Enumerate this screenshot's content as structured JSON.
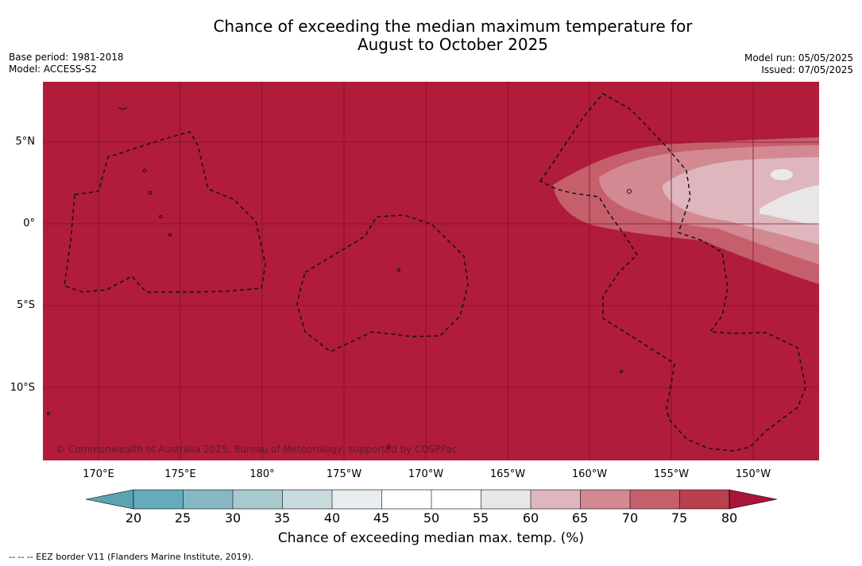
{
  "title": {
    "line1": "Chance of exceeding the median maximum temperature for",
    "line2": "August to October 2025"
  },
  "meta": {
    "base_period": "Base period: 1981-2018",
    "model": "Model: ACCESS-S2",
    "model_run": "Model run: 05/05/2025",
    "issued": "Issued: 07/05/2025"
  },
  "map": {
    "background_color": "#b11c3a",
    "lat_labels": [
      "5°N",
      "0°",
      "5°S",
      "10°S"
    ],
    "lon_labels": [
      "170°E",
      "175°E",
      "180°",
      "175°W",
      "170°W",
      "165°W",
      "160°W",
      "155°W",
      "150°W"
    ],
    "copyright": "© Commonwealth of Australia 2025, Bureau of Meteorology, supported by COSPPac"
  },
  "colorbar": {
    "ticks": [
      "20",
      "25",
      "30",
      "35",
      "40",
      "45",
      "50",
      "55",
      "60",
      "65",
      "70",
      "75",
      "80"
    ],
    "colors": [
      "#66abbb",
      "#86b8c4",
      "#a8c9ce",
      "#c7dadd",
      "#e8eef0",
      "#ffffff",
      "#ffffff",
      "#e9e6e7",
      "#dfb6bd",
      "#d38991",
      "#c65f6c",
      "#b9404f"
    ],
    "low_color": "#5aa3b3",
    "high_color": "#a8163a",
    "label": "Chance of exceeding median max. temp. (%)"
  },
  "footer": "-- -- -- EEZ border V11 (Flanders Marine Institute, 2019)."
}
